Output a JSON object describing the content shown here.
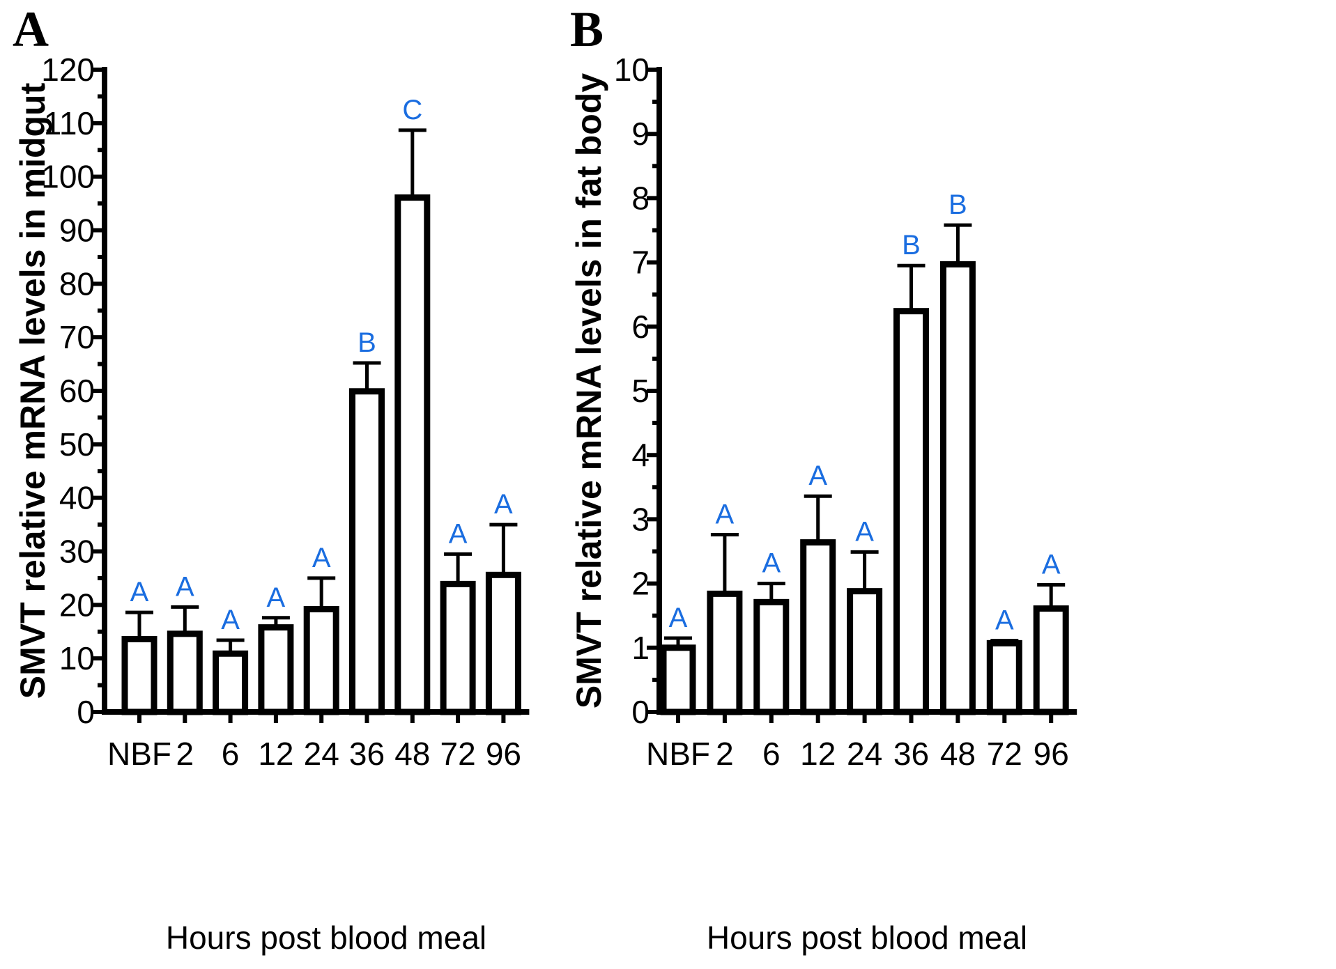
{
  "chart_data": [
    {
      "type": "bar",
      "panel": "A",
      "categories": [
        "NBF",
        "2",
        "6",
        "12",
        "24",
        "36",
        "48",
        "72",
        "96"
      ],
      "values": [
        13.6,
        14.6,
        10.9,
        15.8,
        19.2,
        59.9,
        96.1,
        23.9,
        25.6
      ],
      "error": [
        5.0,
        5.0,
        2.5,
        1.8,
        5.8,
        5.3,
        12.6,
        5.6,
        9.4
      ],
      "significance": [
        "A",
        "A",
        "A",
        "A",
        "A",
        "B",
        "C",
        "A",
        "A"
      ],
      "ylabel": "SMVT relative mRNA levels in midgut",
      "xlabel": "Hours post blood meal",
      "ylim": [
        0,
        120
      ],
      "yticks": [
        0,
        10,
        20,
        30,
        40,
        50,
        60,
        70,
        80,
        90,
        100,
        110,
        120
      ],
      "grid": false
    },
    {
      "type": "bar",
      "panel": "B",
      "categories": [
        "NBF",
        "2",
        "6",
        "12",
        "24",
        "36",
        "48",
        "72",
        "96"
      ],
      "values": [
        1.0,
        1.84,
        1.71,
        2.64,
        1.88,
        6.24,
        6.97,
        1.07,
        1.61
      ],
      "error": [
        0.15,
        0.92,
        0.29,
        0.72,
        0.61,
        0.71,
        0.61,
        0.04,
        0.37
      ],
      "significance": [
        "A",
        "A",
        "A",
        "A",
        "A",
        "B",
        "B",
        "A",
        "A"
      ],
      "ylabel": "SMVT relative mRNA levels in fat body",
      "xlabel": "Hours post blood meal",
      "ylim": [
        0,
        10
      ],
      "yticks": [
        0,
        1,
        2,
        3,
        4,
        5,
        6,
        7,
        8,
        9,
        10
      ],
      "grid": false
    }
  ],
  "colors": {
    "significance": "#1a6de0",
    "bar_fill": "#ffffff",
    "bar_stroke": "#000000"
  }
}
